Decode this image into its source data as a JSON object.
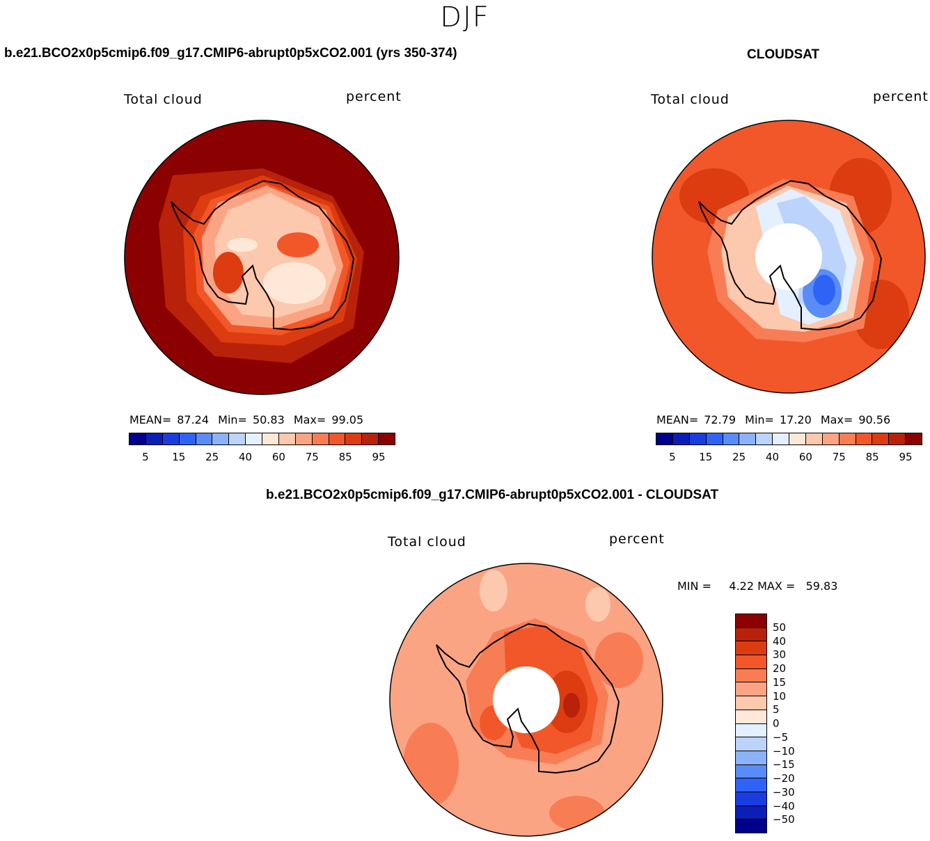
{
  "page": {
    "title": "DJF"
  },
  "panels": [
    {
      "id": "model",
      "title": "b.e21.BCO2x0p5cmip6.f09_g17.CMIP6-abrupt0p5xCO2.001 (yrs 350-374)",
      "left_label": "Total cloud",
      "right_label": "percent",
      "mean_label": "MEAN=",
      "mean_value": "87.24",
      "min_label": "Min=",
      "min_value": "50.83",
      "max_label": "Max=",
      "max_value": "99.05"
    },
    {
      "id": "obs",
      "title": "CLOUDSAT",
      "left_label": "Total cloud",
      "right_label": "percent",
      "mean_label": "MEAN=",
      "mean_value": "72.79",
      "min_label": "Min=",
      "min_value": "17.20",
      "max_label": "Max=",
      "max_value": "90.56"
    },
    {
      "id": "diff",
      "title": "b.e21.BCO2x0p5cmip6.f09_g17.CMIP6-abrupt0p5xCO2.001 - CLOUDSAT",
      "left_label": "Total cloud",
      "right_label": "percent",
      "minmax_text": "MIN =     4.22 MAX =   59.83"
    }
  ],
  "abs_colorbar": {
    "colors": [
      "#00008b",
      "#0a1fb8",
      "#1a3de0",
      "#2d64f5",
      "#5a8cf7",
      "#8cb2f9",
      "#bcd4fb",
      "#e4efff",
      "#ffe8d8",
      "#fcc8ae",
      "#fba484",
      "#f87d55",
      "#f2572a",
      "#dc3c10",
      "#b8220a",
      "#8b0000"
    ],
    "tick_labels": [
      "5",
      "15",
      "25",
      "40",
      "60",
      "75",
      "85",
      "95"
    ]
  },
  "diff_colorbar": {
    "colors": [
      "#8b0000",
      "#b8220a",
      "#dc3c10",
      "#f2572a",
      "#f87d55",
      "#fba484",
      "#fcc8ae",
      "#ffe8d8",
      "#e4efff",
      "#bcd4fb",
      "#8cb2f9",
      "#5a8cf7",
      "#2d64f5",
      "#1a3de0",
      "#0a1fb8",
      "#00008b"
    ],
    "tick_labels": [
      "50",
      "40",
      "30",
      "20",
      "15",
      "10",
      "5",
      "0",
      "−5",
      "−10",
      "−15",
      "−20",
      "−30",
      "−40",
      "−50"
    ]
  }
}
